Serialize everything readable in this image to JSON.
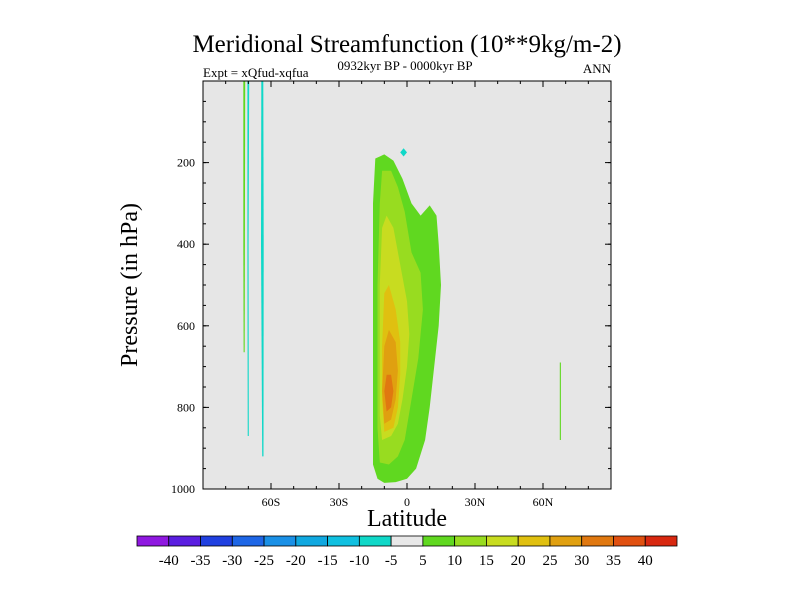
{
  "chart_data": {
    "type": "contour",
    "title": "Meridional Streamfunction (10**9kg/m-2)",
    "subtitle_left": "Expt = xQfud-xqfua",
    "subtitle_center": "0932kyr BP - 0000kyr BP",
    "subtitle_right": "ANN",
    "xlabel": "Latitude",
    "ylabel": "Pressure (in hPa)",
    "xlim": [
      -90,
      90
    ],
    "ylim": [
      1000,
      0
    ],
    "x_ticks": [
      {
        "value": -60,
        "label": "60S"
      },
      {
        "value": -30,
        "label": "30S"
      },
      {
        "value": 0,
        "label": "0"
      },
      {
        "value": 30,
        "label": "30N"
      },
      {
        "value": 60,
        "label": "60N"
      }
    ],
    "y_ticks": [
      {
        "value": 200,
        "label": "200"
      },
      {
        "value": 400,
        "label": "400"
      },
      {
        "value": 600,
        "label": "600"
      },
      {
        "value": 800,
        "label": "800"
      },
      {
        "value": 1000,
        "label": "1000"
      }
    ],
    "colorbar": {
      "labels": [
        "-40",
        "-35",
        "-30",
        "-25",
        "-20",
        "-15",
        "-10",
        "-5",
        "5",
        "10",
        "15",
        "20",
        "25",
        "30",
        "35",
        "40"
      ],
      "colors": [
        "#8f18e0",
        "#5a1ee0",
        "#2040e0",
        "#1e66e6",
        "#1a90e6",
        "#10a8e0",
        "#10c0e0",
        "#10d8c8",
        "#e8e8e8",
        "#60d820",
        "#98dc20",
        "#c8dc20",
        "#e0c010",
        "#e0a010",
        "#e07810",
        "#e05010",
        "#d82810"
      ]
    },
    "contour_regions": [
      {
        "name": "positive-cell-5",
        "level": "5-10",
        "color": "#60d820",
        "points": [
          [
            -13,
            975
          ],
          [
            -10,
            985
          ],
          [
            -5,
            983
          ],
          [
            0,
            975
          ],
          [
            4,
            950
          ],
          [
            8,
            880
          ],
          [
            10,
            800
          ],
          [
            12,
            700
          ],
          [
            14,
            600
          ],
          [
            15,
            500
          ],
          [
            14,
            400
          ],
          [
            13,
            330
          ],
          [
            10,
            305
          ],
          [
            6,
            330
          ],
          [
            2,
            300
          ],
          [
            -2,
            240
          ],
          [
            -6,
            195
          ],
          [
            -10,
            180
          ],
          [
            -14,
            190
          ],
          [
            -15,
            300
          ],
          [
            -15,
            500
          ],
          [
            -15,
            700
          ],
          [
            -15,
            850
          ],
          [
            -15,
            940
          ]
        ]
      },
      {
        "name": "positive-cell-10",
        "level": "10-15",
        "color": "#98dc20",
        "points": [
          [
            -12,
            935
          ],
          [
            -8,
            940
          ],
          [
            -4,
            920
          ],
          [
            -1,
            880
          ],
          [
            2,
            780
          ],
          [
            5,
            680
          ],
          [
            7,
            560
          ],
          [
            6,
            470
          ],
          [
            2,
            420
          ],
          [
            -1,
            320
          ],
          [
            -4,
            260
          ],
          [
            -7,
            220
          ],
          [
            -11,
            220
          ],
          [
            -12,
            300
          ],
          [
            -13,
            500
          ],
          [
            -13,
            700
          ],
          [
            -13,
            850
          ]
        ]
      },
      {
        "name": "positive-cell-15",
        "level": "15-20",
        "color": "#c8dc20",
        "points": [
          [
            -11,
            880
          ],
          [
            -7,
            870
          ],
          [
            -4,
            840
          ],
          [
            -2,
            780
          ],
          [
            0,
            700
          ],
          [
            1,
            620
          ],
          [
            0,
            540
          ],
          [
            -3,
            450
          ],
          [
            -6,
            360
          ],
          [
            -9,
            330
          ],
          [
            -11,
            360
          ],
          [
            -12,
            500
          ],
          [
            -12,
            700
          ],
          [
            -12,
            820
          ]
        ]
      },
      {
        "name": "positive-cell-20",
        "level": "20-25",
        "color": "#e0c010",
        "points": [
          [
            -10,
            860
          ],
          [
            -6,
            850
          ],
          [
            -4,
            800
          ],
          [
            -3,
            720
          ],
          [
            -3,
            640
          ],
          [
            -5,
            560
          ],
          [
            -8,
            500
          ],
          [
            -10,
            520
          ],
          [
            -11,
            650
          ],
          [
            -11,
            780
          ]
        ]
      },
      {
        "name": "positive-cell-25",
        "level": "25-30",
        "color": "#e0a010",
        "points": [
          [
            -10,
            840
          ],
          [
            -7,
            830
          ],
          [
            -5,
            780
          ],
          [
            -4,
            710
          ],
          [
            -5,
            640
          ],
          [
            -8,
            610
          ],
          [
            -10,
            650
          ],
          [
            -11,
            760
          ]
        ]
      },
      {
        "name": "positive-cell-30",
        "level": "30-35",
        "color": "#e07810",
        "points": [
          [
            -9,
            810
          ],
          [
            -7,
            800
          ],
          [
            -6,
            760
          ],
          [
            -7,
            720
          ],
          [
            -9,
            720
          ],
          [
            -10,
            760
          ]
        ]
      },
      {
        "name": "antarctic-streak-positive",
        "level": "5-10",
        "color": "#60d820",
        "points": [
          [
            -72.2,
            0
          ],
          [
            -71.4,
            0
          ],
          [
            -71.5,
            400
          ],
          [
            -71.6,
            665
          ],
          [
            -72.1,
            665
          ],
          [
            -72.2,
            400
          ]
        ]
      },
      {
        "name": "antarctic-streak-negative",
        "level": "-5--10",
        "color": "#10d8c8",
        "points": [
          [
            -70.4,
            0
          ],
          [
            -69.6,
            0
          ],
          [
            -69.9,
            400
          ],
          [
            -69.8,
            870
          ],
          [
            -70.3,
            870
          ],
          [
            -70.4,
            400
          ]
        ]
      },
      {
        "name": "southern-ocean-streak-negative",
        "level": "-5--10",
        "color": "#10d8c8",
        "points": [
          [
            -64.3,
            0
          ],
          [
            -63.4,
            0
          ],
          [
            -63.2,
            400
          ],
          [
            -63.3,
            920
          ],
          [
            -63.9,
            920
          ],
          [
            -64.4,
            400
          ]
        ]
      },
      {
        "name": "northern-streak-positive",
        "level": "5-10",
        "color": "#60d820",
        "points": [
          [
            67.4,
            690
          ],
          [
            67.9,
            690
          ],
          [
            67.9,
            880
          ],
          [
            67.4,
            880
          ]
        ]
      },
      {
        "name": "upper-negative-blob",
        "level": "-5--10",
        "color": "#10d8c8",
        "points": [
          [
            -1.5,
            165
          ],
          [
            0,
            175
          ],
          [
            -1.5,
            185
          ],
          [
            -3,
            175
          ]
        ]
      }
    ]
  }
}
